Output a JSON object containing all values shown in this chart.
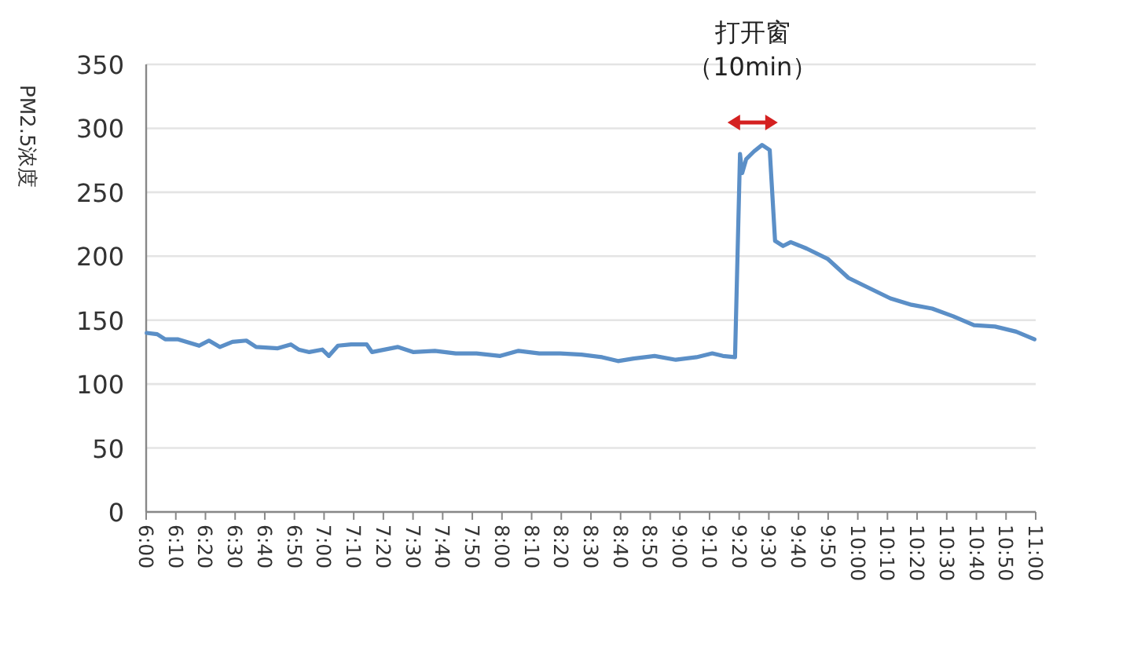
{
  "chart_data": {
    "type": "line",
    "ylabel": "PM2.5浓度",
    "annotations": [
      "打开窗（10min）"
    ],
    "x": [
      6.003,
      6.062,
      6.107,
      6.18,
      6.298,
      6.353,
      6.415,
      6.485,
      6.563,
      6.618,
      6.74,
      6.813,
      6.857,
      6.917,
      6.99,
      7.027,
      7.078,
      7.152,
      7.24,
      7.27,
      7.415,
      7.503,
      7.623,
      7.74,
      7.857,
      7.99,
      8.093,
      8.21,
      8.328,
      8.447,
      8.563,
      8.652,
      8.74,
      8.858,
      8.977,
      9.093,
      9.182,
      9.242,
      9.31,
      9.338,
      9.35,
      9.373,
      9.417,
      9.462,
      9.505,
      9.535,
      9.58,
      9.623,
      9.712,
      9.83,
      9.948,
      10.065,
      10.183,
      10.302,
      10.418,
      10.537,
      10.653,
      10.772,
      10.89,
      10.993
    ],
    "series": [
      {
        "color": "#5b8fc7",
        "values": [
          140,
          139,
          135,
          135,
          130,
          134,
          129,
          133,
          134,
          129,
          128,
          131,
          127,
          125,
          127,
          122,
          130,
          131,
          131,
          125,
          129,
          125,
          126,
          124,
          124,
          122,
          126,
          124,
          124,
          123,
          121,
          118,
          120,
          122,
          119,
          121,
          124,
          122,
          121,
          280,
          265,
          276,
          282,
          287,
          283,
          212,
          208,
          211,
          206,
          198,
          183,
          175,
          167,
          162,
          159,
          153,
          146,
          145,
          141,
          135
        ]
      }
    ],
    "xlim": [
      6,
      11
    ],
    "xticks": [
      {
        "value": 6,
        "label": "6:00"
      },
      {
        "value": 6.1667,
        "label": "6:10"
      },
      {
        "value": 6.3333,
        "label": "6:20"
      },
      {
        "value": 6.5,
        "label": "6:30"
      },
      {
        "value": 6.6667,
        "label": "6:40"
      },
      {
        "value": 6.8333,
        "label": "6:50"
      },
      {
        "value": 7,
        "label": "7:00"
      },
      {
        "value": 7.1667,
        "label": "7:10"
      },
      {
        "value": 7.3333,
        "label": "7:20"
      },
      {
        "value": 7.5,
        "label": "7:30"
      },
      {
        "value": 7.6667,
        "label": "7:40"
      },
      {
        "value": 7.8333,
        "label": "7:50"
      },
      {
        "value": 8,
        "label": "8:00"
      },
      {
        "value": 8.1667,
        "label": "8:10"
      },
      {
        "value": 8.3333,
        "label": "8:20"
      },
      {
        "value": 8.5,
        "label": "8:30"
      },
      {
        "value": 8.6667,
        "label": "8:40"
      },
      {
        "value": 8.8333,
        "label": "8:50"
      },
      {
        "value": 9,
        "label": "9:00"
      },
      {
        "value": 9.1667,
        "label": "9:10"
      },
      {
        "value": 9.3333,
        "label": "9:20"
      },
      {
        "value": 9.5,
        "label": "9:30"
      },
      {
        "value": 9.6667,
        "label": "9:40"
      },
      {
        "value": 9.8333,
        "label": "9:50"
      },
      {
        "value": 10,
        "label": "10:00"
      },
      {
        "value": 10.1667,
        "label": "10:10"
      },
      {
        "value": 10.3333,
        "label": "10:20"
      },
      {
        "value": 10.5,
        "label": "10:30"
      },
      {
        "value": 10.6667,
        "label": "10:40"
      },
      {
        "value": 10.8333,
        "label": "10:50"
      },
      {
        "value": 11,
        "label": "11:00"
      }
    ],
    "ylim": [
      0,
      350
    ],
    "yticks": [
      0,
      50,
      100,
      150,
      200,
      250,
      300,
      350
    ],
    "grid": "y",
    "marker": "none",
    "line_style": "solid"
  }
}
